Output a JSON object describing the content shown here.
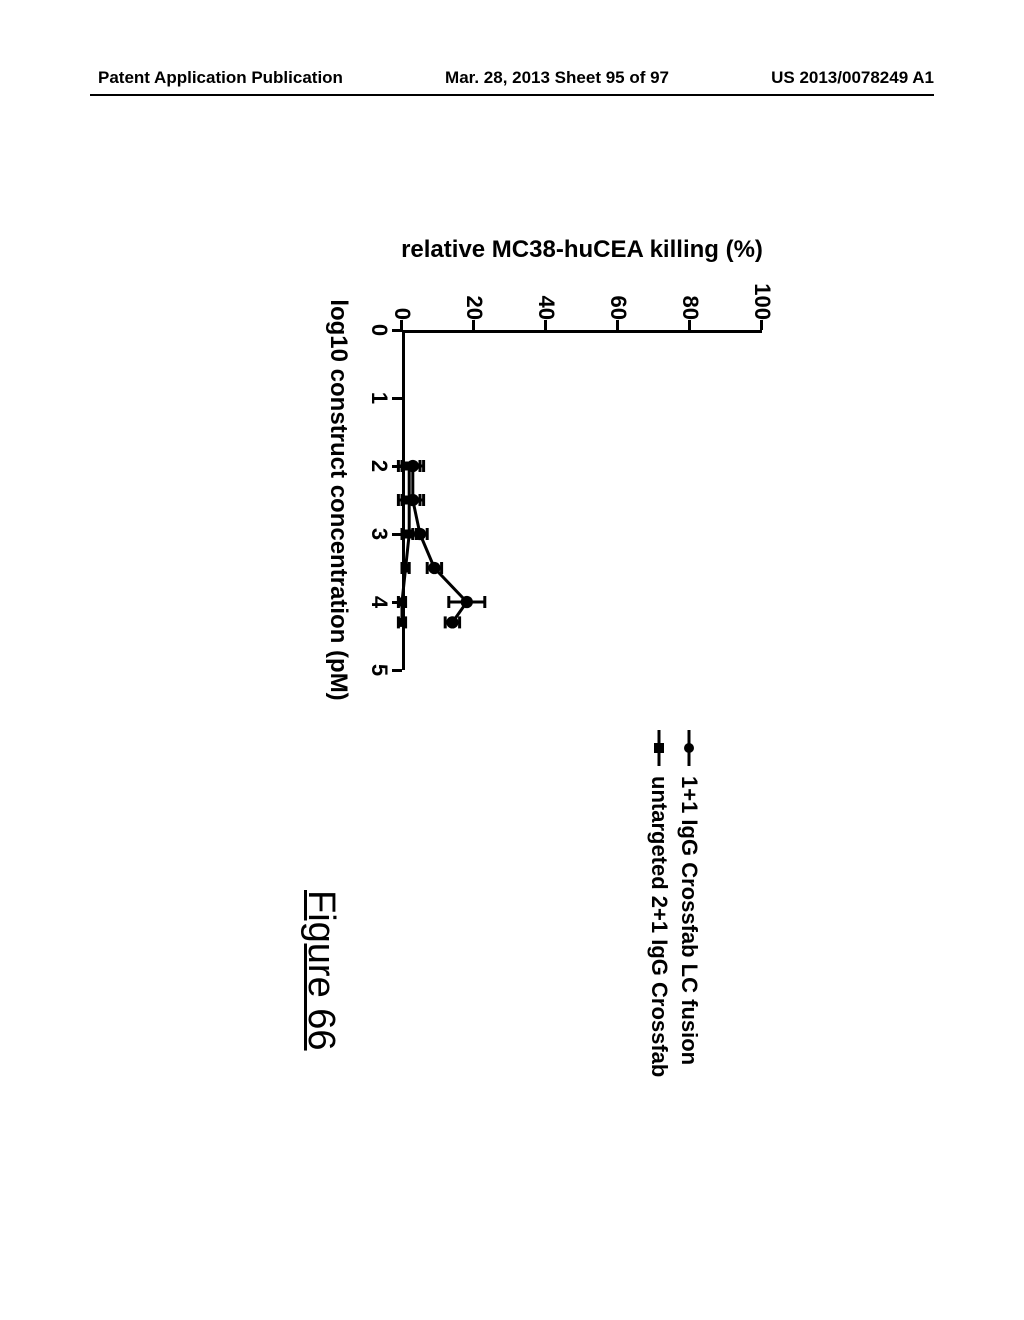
{
  "header": {
    "left": "Patent Application Publication",
    "center": "Mar. 28, 2013  Sheet 95 of 97",
    "right": "US 2013/0078249 A1"
  },
  "chart": {
    "type": "line",
    "y_label": "relative MC38-huCEA killing (%)",
    "x_label": "log10 construct concentration (pM)",
    "ylim": [
      0,
      100
    ],
    "xlim": [
      0,
      5
    ],
    "y_ticks": [
      0,
      20,
      40,
      60,
      80,
      100
    ],
    "x_ticks": [
      0,
      1,
      2,
      3,
      4,
      5
    ],
    "title_fontsize": 24,
    "tick_fontsize": 22,
    "axis_line_width": 3,
    "background_color": "#ffffff",
    "series": [
      {
        "name": "1+1 IgG Crossfab LC fusion",
        "marker": "circle",
        "color": "#000000",
        "line_width": 3,
        "marker_size": 8,
        "x": [
          2.0,
          2.5,
          3.0,
          3.5,
          4.0,
          4.3
        ],
        "y": [
          3,
          3,
          5,
          9,
          18,
          14
        ],
        "y_err": [
          3,
          3,
          2,
          2,
          5,
          2
        ]
      },
      {
        "name": "untargeted 2+1 IgG Crossfab",
        "marker": "square",
        "color": "#000000",
        "line_width": 3,
        "marker_size": 9,
        "x": [
          2.0,
          2.5,
          3.0,
          3.5,
          4.0,
          4.3
        ],
        "y": [
          2,
          2,
          2,
          1,
          0,
          0
        ],
        "y_err": [
          3,
          3,
          2,
          1,
          1,
          1
        ]
      }
    ]
  },
  "legend": {
    "items": [
      {
        "marker": "circle",
        "label": "1+1 IgG Crossfab LC fusion"
      },
      {
        "marker": "square",
        "label": "untargeted 2+1 IgG Crossfab"
      }
    ],
    "fontsize": 22
  },
  "figure_caption": "Figure 66"
}
